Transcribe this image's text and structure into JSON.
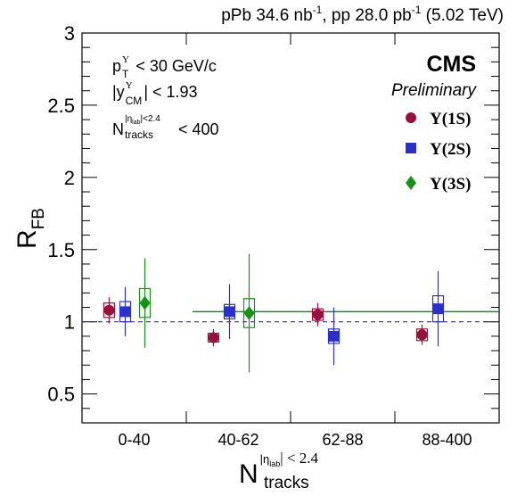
{
  "chart_data": {
    "type": "scatter",
    "top_label": {
      "part1": "pPb 34.6 nb",
      "sup1": "-1",
      "part2": ", pp 28.0 pb",
      "sup2": "-1",
      "part3": " (5.02 TeV)"
    },
    "cms": {
      "name": "CMS",
      "status": "Preliminary"
    },
    "cuts": {
      "pt": {
        "main": "p",
        "sub": "T",
        "sup": "Υ",
        "rest": "< 30 GeV/c"
      },
      "y": {
        "open": "|y",
        "sup": "Υ",
        "sub": "CM",
        "rest": "| < 1.93"
      },
      "ntrk": {
        "main": "N",
        "sub": "tracks",
        "sup": "|η",
        "sup_sub": "lab",
        "sup_rest": "|<2.4",
        "rest": "< 400"
      }
    },
    "xlabel": {
      "main": "N",
      "sub": "tracks",
      "sup": "|η",
      "sup_sub": "lab",
      "sup_rest": "| < 2.4"
    },
    "ylabel": {
      "main": "R",
      "sub": "FB"
    },
    "ylim": [
      0.3,
      3.0
    ],
    "yticks": [
      "0.5",
      "1",
      "1.5",
      "2",
      "2.5",
      "3"
    ],
    "categories": [
      "0-40",
      "40-62",
      "62-88",
      "88-400"
    ],
    "reference_line": 1.0,
    "series": [
      {
        "name": "Υ(1S)",
        "marker": "circle",
        "color": "#9a0f3c",
        "values": [
          1.08,
          0.89,
          1.05,
          0.91
        ],
        "stat_err": [
          0.09,
          0.06,
          0.08,
          0.07
        ],
        "sys_err": [
          0.05,
          0.03,
          0.04,
          0.04
        ]
      },
      {
        "name": "Υ(2S)",
        "marker": "square",
        "color": "#2c2fcf",
        "values": [
          1.07,
          1.07,
          0.9,
          1.09
        ],
        "stat_err": [
          0.17,
          0.19,
          0.2,
          0.26
        ],
        "sys_err": [
          0.07,
          0.05,
          0.05,
          0.09
        ]
      },
      {
        "name": "Υ(3S)",
        "marker": "diamond",
        "color": "#159315",
        "values": [
          1.13,
          1.06
        ],
        "stat_err": [
          0.31,
          0.41
        ],
        "sys_err": [
          0.1,
          0.1
        ],
        "band": {
          "value": 1.07,
          "from": "40-62",
          "to": "88-400"
        }
      }
    ]
  }
}
